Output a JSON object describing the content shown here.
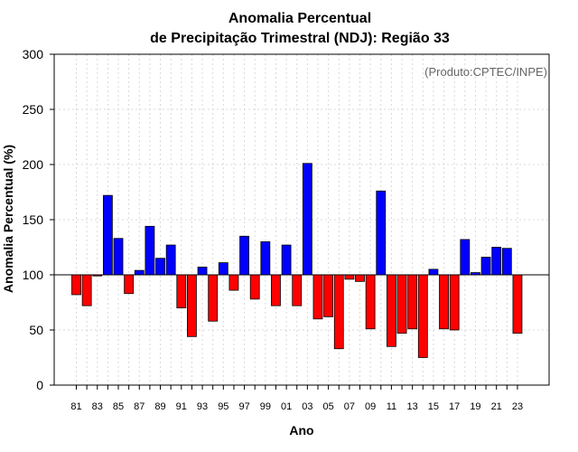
{
  "chart_data": {
    "type": "bar",
    "title_line1": "Anomalia Percentual",
    "title_line2": "de Precipitação Trimestral (NDJ): Região 33",
    "xlabel": "Ano",
    "ylabel": "Anomalia Percentual (%)",
    "credit": "(Produto:CPTEC/INPE)",
    "ylim": [
      0,
      300
    ],
    "yticks": [
      0,
      50,
      100,
      150,
      200,
      250,
      300
    ],
    "baseline": 100,
    "above_color": "#0000ff",
    "below_color": "#ff0000",
    "categories": [
      "81",
      "82",
      "83",
      "84",
      "85",
      "86",
      "87",
      "88",
      "89",
      "90",
      "91",
      "92",
      "93",
      "94",
      "95",
      "96",
      "97",
      "98",
      "99",
      "00",
      "01",
      "02",
      "03",
      "04",
      "05",
      "06",
      "07",
      "08",
      "09",
      "10",
      "11",
      "12",
      "13",
      "14",
      "15",
      "16",
      "17",
      "18",
      "19",
      "20",
      "21",
      "22",
      "23"
    ],
    "values": [
      82,
      72,
      99,
      172,
      133,
      83,
      104,
      144,
      115,
      127,
      70,
      44,
      107,
      58,
      111,
      86,
      135,
      78,
      130,
      72,
      127,
      72,
      201,
      60,
      62,
      33,
      96,
      94,
      51,
      176,
      35,
      47,
      51,
      25,
      105,
      51,
      50,
      132,
      102,
      116,
      125,
      124,
      47
    ],
    "xtick_labels": [
      "81",
      "83",
      "85",
      "87",
      "89",
      "91",
      "93",
      "95",
      "97",
      "99",
      "01",
      "03",
      "05",
      "07",
      "09",
      "11",
      "13",
      "15",
      "17",
      "19",
      "21",
      "23"
    ]
  }
}
